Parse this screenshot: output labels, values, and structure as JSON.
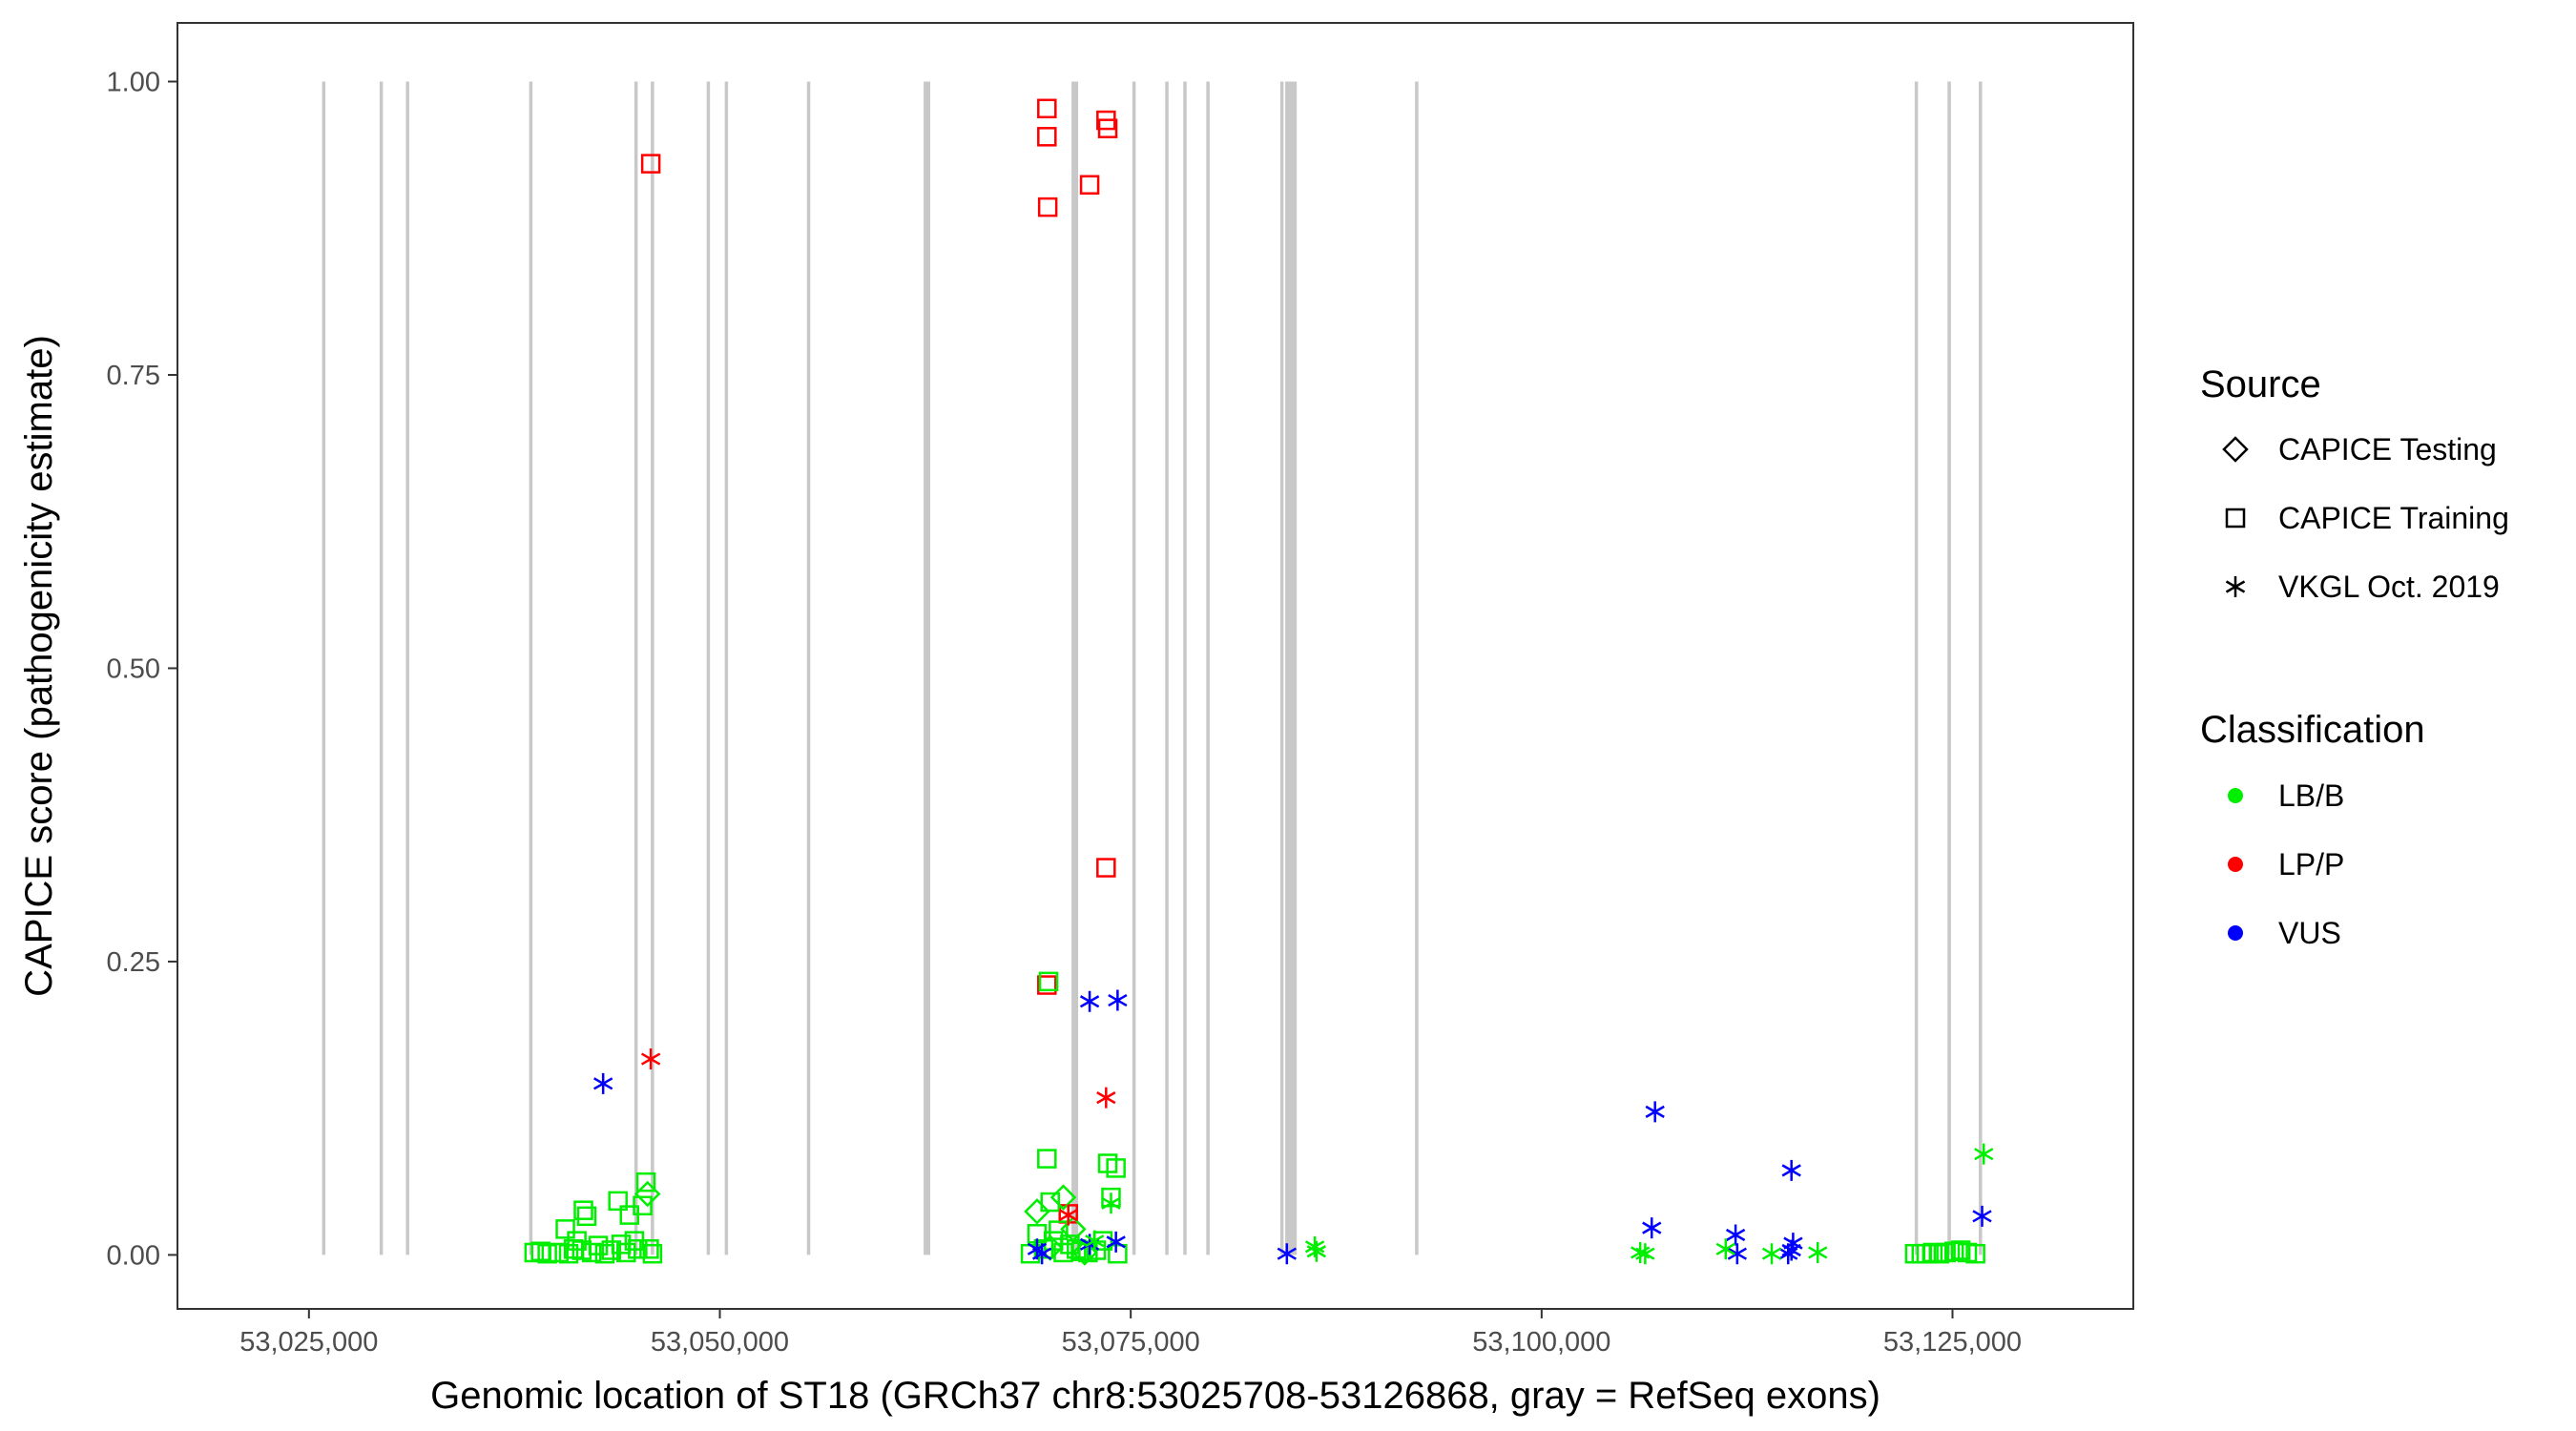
{
  "chart_data": {
    "type": "scatter",
    "xlabel": "Genomic location of ST18 (GRCh37 chr8:53025708-53126868, gray = RefSeq exons)",
    "ylabel": "CAPICE score (pathogenicity estimate)",
    "xlim": [
      53017000,
      53136000
    ],
    "ylim": [
      -0.046,
      1.05
    ],
    "xticks": [
      53025000,
      53050000,
      53075000,
      53100000,
      53125000
    ],
    "xtick_labels": [
      "53,025,000",
      "53,050,000",
      "53,075,000",
      "53,100,000",
      "53,125,000"
    ],
    "yticks": [
      0,
      0.25,
      0.5,
      0.75,
      1.0
    ],
    "ytick_labels": [
      "0.00",
      "0.25",
      "0.50",
      "0.75",
      "1.00"
    ],
    "grid": false,
    "exon_positions": [
      53025900,
      53029400,
      53031000,
      53038500,
      53044900,
      53045900,
      53049300,
      53050400,
      53055400,
      53062500,
      53062700,
      53071500,
      53071700,
      53075200,
      53077200,
      53078300,
      53079700,
      53084200,
      53084500,
      53084600,
      53084700,
      53084800,
      53084900,
      53085000,
      53092400,
      53122800,
      53124800,
      53126700
    ],
    "legends": [
      {
        "title": "Source",
        "position": "right",
        "entries": [
          {
            "label": "CAPICE Testing",
            "shape": "diamond"
          },
          {
            "label": "CAPICE Training",
            "shape": "square"
          },
          {
            "label": "VKGL Oct. 2019",
            "shape": "asterisk"
          }
        ]
      },
      {
        "title": "Classification",
        "position": "right",
        "entries": [
          {
            "label": "LB/B",
            "color": "#00ee00"
          },
          {
            "label": "LP/P",
            "color": "#ff0000"
          },
          {
            "label": "VUS",
            "color": "#0000ff"
          }
        ]
      }
    ],
    "series": [
      {
        "source": "CAPICE Training",
        "classification": "LP/P",
        "points": [
          [
            53045800,
            0.93
          ],
          [
            53069900,
            0.977
          ],
          [
            53069900,
            0.953
          ],
          [
            53069950,
            0.893
          ],
          [
            53072500,
            0.912
          ],
          [
            53073500,
            0.967
          ],
          [
            53073600,
            0.96
          ],
          [
            53073500,
            0.33
          ],
          [
            53069900,
            0.23
          ],
          [
            53071200,
            0.035
          ]
        ]
      },
      {
        "source": "CAPICE Training",
        "classification": "LB/B",
        "points": [
          [
            53038700,
            0.002
          ],
          [
            53039100,
            0.003
          ],
          [
            53039500,
            0.001
          ],
          [
            53040200,
            0.002
          ],
          [
            53040600,
            0.022
          ],
          [
            53040800,
            0.001
          ],
          [
            53041100,
            0.005
          ],
          [
            53041300,
            0.012
          ],
          [
            53041600,
            0.004
          ],
          [
            53041700,
            0.038
          ],
          [
            53041900,
            0.033
          ],
          [
            53042200,
            0.002
          ],
          [
            53042600,
            0.008
          ],
          [
            53043000,
            0.001
          ],
          [
            53043400,
            0.004
          ],
          [
            53043800,
            0.046
          ],
          [
            53044000,
            0.009
          ],
          [
            53044300,
            0.002
          ],
          [
            53044500,
            0.034
          ],
          [
            53044800,
            0.012
          ],
          [
            53045000,
            0.005
          ],
          [
            53045300,
            0.042
          ],
          [
            53045500,
            0.062
          ],
          [
            53045700,
            0.005
          ],
          [
            53045900,
            0.001
          ],
          [
            53068900,
            0.001
          ],
          [
            53069300,
            0.018
          ],
          [
            53069700,
            0.005
          ],
          [
            53069900,
            0.082
          ],
          [
            53070000,
            0.233
          ],
          [
            53070100,
            0.045
          ],
          [
            53070300,
            0.012
          ],
          [
            53070600,
            0.021
          ],
          [
            53070900,
            0.002
          ],
          [
            53071300,
            0.009
          ],
          [
            53071700,
            0.005
          ],
          [
            53072000,
            0.003
          ],
          [
            53072400,
            0.002
          ],
          [
            53072900,
            0.004
          ],
          [
            53073300,
            0.012
          ],
          [
            53073600,
            0.078
          ],
          [
            53073800,
            0.049
          ],
          [
            53074100,
            0.074
          ],
          [
            53074200,
            0.001
          ],
          [
            53122700,
            0.001
          ],
          [
            53123100,
            0.001
          ],
          [
            53123400,
            0.001
          ],
          [
            53123800,
            0.002
          ],
          [
            53124200,
            0.001
          ],
          [
            53124600,
            0.002
          ],
          [
            53125100,
            0.003
          ],
          [
            53125500,
            0.004
          ],
          [
            53125900,
            0.002
          ],
          [
            53126400,
            0.001
          ]
        ]
      },
      {
        "source": "CAPICE Testing",
        "classification": "LB/B",
        "points": [
          [
            53045600,
            0.052
          ],
          [
            53069300,
            0.037
          ],
          [
            53070100,
            0.006
          ],
          [
            53070900,
            0.049
          ],
          [
            53071500,
            0.022
          ],
          [
            53072200,
            0.002
          ]
        ]
      },
      {
        "source": "VKGL Oct. 2019",
        "classification": "LP/P",
        "points": [
          [
            53045800,
            0.167
          ],
          [
            53073500,
            0.134
          ],
          [
            53071200,
            0.034
          ]
        ]
      },
      {
        "source": "VKGL Oct. 2019",
        "classification": "VUS",
        "points": [
          [
            53042900,
            0.146
          ],
          [
            53072500,
            0.216
          ],
          [
            53074200,
            0.217
          ],
          [
            53069300,
            0.005
          ],
          [
            53069600,
            0.001
          ],
          [
            53072500,
            0.009
          ],
          [
            53074100,
            0.011
          ],
          [
            53084500,
            0.001
          ],
          [
            53106900,
            0.122
          ],
          [
            53106700,
            0.023
          ],
          [
            53111800,
            0.017
          ],
          [
            53111900,
            0.001
          ],
          [
            53115200,
            0.072
          ],
          [
            53115300,
            0.01
          ],
          [
            53115200,
            0.004
          ],
          [
            53115000,
            0.001
          ],
          [
            53126800,
            0.033
          ]
        ]
      },
      {
        "source": "VKGL Oct. 2019",
        "classification": "LB/B",
        "points": [
          [
            53073800,
            0.044
          ],
          [
            53072800,
            0.012
          ],
          [
            53086200,
            0.007
          ],
          [
            53086300,
            0.003
          ],
          [
            53106000,
            0.002
          ],
          [
            53106300,
            0.001
          ],
          [
            53111200,
            0.005
          ],
          [
            53114000,
            0.001
          ],
          [
            53116800,
            0.002
          ],
          [
            53126900,
            0.086
          ]
        ]
      }
    ]
  }
}
